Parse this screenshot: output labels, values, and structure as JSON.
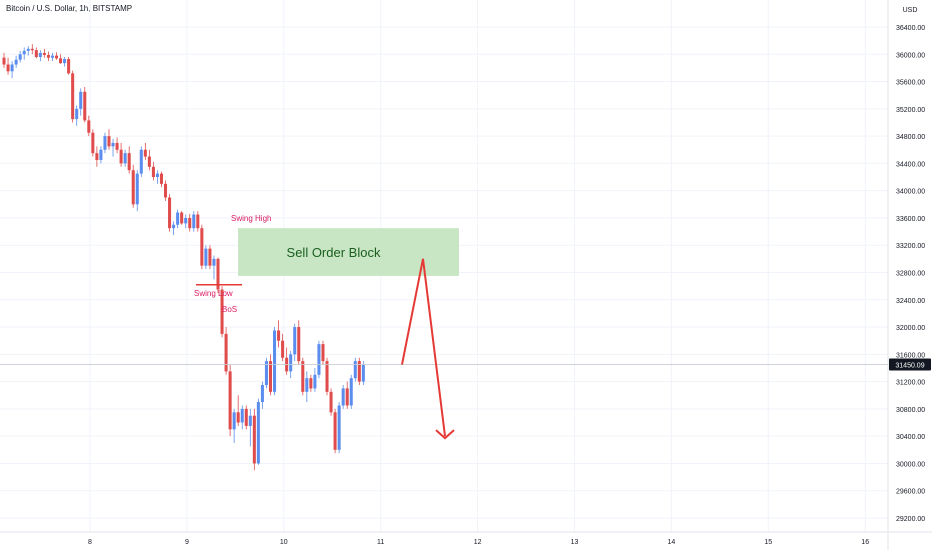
{
  "header": {
    "title": "Bitcoin / U.S. Dollar, 1h, BITSTAMP"
  },
  "price_axis": {
    "currency": "USD",
    "ticks": [
      "36400.00",
      "36000.00",
      "35600.00",
      "35200.00",
      "34800.00",
      "34400.00",
      "34000.00",
      "33600.00",
      "33200.00",
      "32800.00",
      "32400.00",
      "32000.00",
      "31600.00",
      "31200.00",
      "30800.00",
      "30400.00",
      "30000.00",
      "29600.00",
      "29200.00"
    ],
    "last_price": "31450.09"
  },
  "time_axis": {
    "ticks": [
      "8",
      "9",
      "10",
      "11",
      "12",
      "13",
      "14",
      "15",
      "16"
    ]
  },
  "annotations": {
    "swing_high": "Swing High",
    "swing_low": "Swing Low",
    "bos": "BoS",
    "order_block": "Sell Order Block"
  },
  "colors": {
    "up": "#5b8def",
    "down": "#e04b4b",
    "annotation_red": "#d81b60",
    "order_block_fill": "#c8e6c4",
    "order_block_text": "#1b5e20",
    "projection": "#e53935",
    "grid": "#f0f3fa"
  },
  "chart_data": {
    "type": "candlestick",
    "symbol": "Bitcoin / U.S. Dollar",
    "interval": "1h",
    "exchange": "BITSTAMP",
    "currency": "USD",
    "ylim": [
      29000,
      36650
    ],
    "x_ticks": [
      "8",
      "9",
      "10",
      "11",
      "12",
      "13",
      "14",
      "15",
      "16"
    ],
    "last_price": 31450.09,
    "order_block": {
      "label": "Sell Order Block",
      "low": 32750,
      "high": 33450
    },
    "swing_low_price": 32620,
    "projection": [
      31450,
      33000,
      30400
    ],
    "candles": [
      [
        35950,
        36020,
        35800,
        35850
      ],
      [
        35850,
        35950,
        35700,
        35750
      ],
      [
        35750,
        35900,
        35650,
        35850
      ],
      [
        35850,
        35980,
        35800,
        35920
      ],
      [
        35920,
        36050,
        35880,
        36000
      ],
      [
        36000,
        36100,
        35920,
        36050
      ],
      [
        36050,
        36120,
        35980,
        36080
      ],
      [
        36080,
        36150,
        36000,
        36060
      ],
      [
        36060,
        36100,
        35940,
        35960
      ],
      [
        35960,
        36060,
        35900,
        36020
      ],
      [
        36020,
        36080,
        35950,
        35990
      ],
      [
        35990,
        36040,
        35900,
        35950
      ],
      [
        35950,
        36020,
        35900,
        35980
      ],
      [
        35980,
        36030,
        35920,
        35940
      ],
      [
        35940,
        36000,
        35860,
        35870
      ],
      [
        35870,
        35960,
        35820,
        35930
      ],
      [
        35930,
        35960,
        35700,
        35720
      ],
      [
        35720,
        35760,
        35000,
        35050
      ],
      [
        35050,
        35250,
        34950,
        35200
      ],
      [
        35200,
        35500,
        35100,
        35450
      ],
      [
        35450,
        35520,
        35000,
        35030
      ],
      [
        35030,
        35100,
        34800,
        34850
      ],
      [
        34850,
        34900,
        34500,
        34550
      ],
      [
        34550,
        34650,
        34350,
        34450
      ],
      [
        34450,
        34650,
        34400,
        34600
      ],
      [
        34600,
        34850,
        34550,
        34800
      ],
      [
        34800,
        34900,
        34600,
        34650
      ],
      [
        34650,
        34760,
        34500,
        34700
      ],
      [
        34700,
        34780,
        34550,
        34600
      ],
      [
        34600,
        34700,
        34350,
        34400
      ],
      [
        34400,
        34600,
        34350,
        34550
      ],
      [
        34550,
        34650,
        34250,
        34300
      ],
      [
        34300,
        34380,
        33750,
        33800
      ],
      [
        33800,
        34300,
        33700,
        34250
      ],
      [
        34250,
        34650,
        34200,
        34600
      ],
      [
        34600,
        34700,
        34450,
        34500
      ],
      [
        34500,
        34600,
        34300,
        34350
      ],
      [
        34350,
        34420,
        34150,
        34200
      ],
      [
        34200,
        34300,
        34100,
        34250
      ],
      [
        34250,
        34280,
        34050,
        34100
      ],
      [
        34100,
        34150,
        33850,
        33900
      ],
      [
        33900,
        33950,
        33400,
        33450
      ],
      [
        33450,
        33550,
        33350,
        33500
      ],
      [
        33500,
        33720,
        33450,
        33680
      ],
      [
        33680,
        33700,
        33500,
        33520
      ],
      [
        33520,
        33650,
        33450,
        33600
      ],
      [
        33600,
        33660,
        33400,
        33450
      ],
      [
        33450,
        33700,
        33400,
        33650
      ],
      [
        33650,
        33700,
        33400,
        33450
      ],
      [
        33450,
        33500,
        32850,
        32900
      ],
      [
        32900,
        33200,
        32850,
        33150
      ],
      [
        33150,
        33200,
        32850,
        32900
      ],
      [
        32900,
        33050,
        32700,
        33000
      ],
      [
        33000,
        33020,
        32500,
        32550
      ],
      [
        32550,
        32600,
        31850,
        31900
      ],
      [
        31900,
        32000,
        31300,
        31350
      ],
      [
        31350,
        31450,
        30400,
        30500
      ],
      [
        30500,
        30800,
        30300,
        30750
      ],
      [
        30750,
        31000,
        30550,
        30600
      ],
      [
        30600,
        30850,
        30500,
        30800
      ],
      [
        30800,
        30850,
        30500,
        30550
      ],
      [
        30550,
        30800,
        30250,
        30700
      ],
      [
        30700,
        30800,
        29900,
        30000
      ],
      [
        30000,
        30950,
        29980,
        30900
      ],
      [
        30900,
        31200,
        30800,
        31150
      ],
      [
        31150,
        31550,
        31100,
        31500
      ],
      [
        31500,
        31600,
        31000,
        31050
      ],
      [
        31050,
        32000,
        31000,
        31950
      ],
      [
        31950,
        32100,
        31700,
        31800
      ],
      [
        31800,
        31900,
        31500,
        31550
      ],
      [
        31550,
        31700,
        31300,
        31350
      ],
      [
        31350,
        31650,
        31250,
        31600
      ],
      [
        31600,
        32050,
        31500,
        32000
      ],
      [
        32000,
        32100,
        31450,
        31500
      ],
      [
        31500,
        31550,
        31000,
        31050
      ],
      [
        31050,
        31350,
        30900,
        31250
      ],
      [
        31250,
        31300,
        31050,
        31100
      ],
      [
        31100,
        31400,
        31050,
        31300
      ],
      [
        31300,
        31800,
        31250,
        31750
      ],
      [
        31750,
        31800,
        31450,
        31500
      ],
      [
        31500,
        31550,
        31000,
        31050
      ],
      [
        31050,
        31100,
        30700,
        30750
      ],
      [
        30750,
        30800,
        30150,
        30200
      ],
      [
        30200,
        30900,
        30150,
        30850
      ],
      [
        30850,
        31150,
        30800,
        31100
      ],
      [
        31100,
        31200,
        30800,
        30850
      ],
      [
        30850,
        31300,
        30800,
        31250
      ],
      [
        31250,
        31550,
        31200,
        31500
      ],
      [
        31500,
        31550,
        31150,
        31200
      ],
      [
        31200,
        31500,
        31150,
        31450
      ]
    ]
  }
}
